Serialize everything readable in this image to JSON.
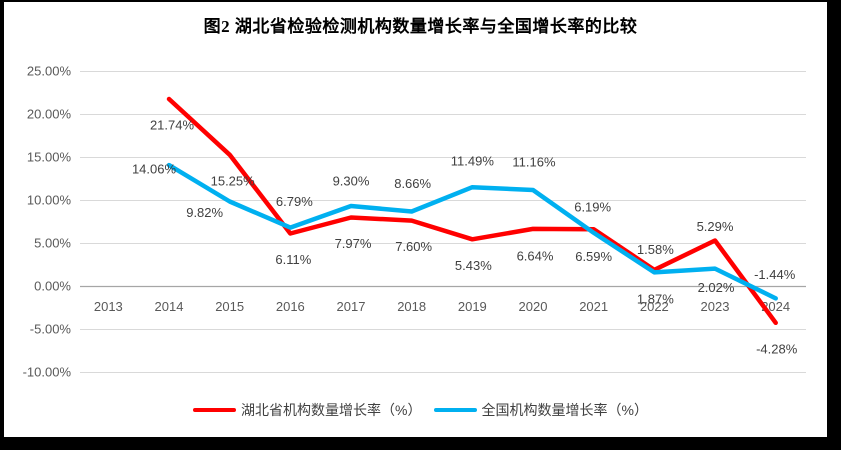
{
  "chart_data": {
    "type": "line",
    "title": "图2  湖北省检验检测机构数量增长率与全国增长率的比较",
    "categories": [
      "2013",
      "2014",
      "2015",
      "2016",
      "2017",
      "2018",
      "2019",
      "2020",
      "2021",
      "2022",
      "2023",
      "2024"
    ],
    "y_axis": {
      "ticks": [
        "25.00%",
        "20.00%",
        "15.00%",
        "10.00%",
        "5.00%",
        "0.00%",
        "-5.00%",
        "-10.00%"
      ],
      "tick_values": [
        25,
        20,
        15,
        10,
        5,
        0,
        -5,
        -10
      ],
      "min": -10,
      "max": 25
    },
    "grid": true,
    "legend_position": "bottom",
    "colors": {
      "grid": "#D9D9D9",
      "axis": "#A6A6A6",
      "tick_text": "#595959",
      "label_text": "#404040",
      "background": "#FFFFFF",
      "frame": "#000000"
    },
    "series": [
      {
        "name": "湖北省机构数量增长率（%）",
        "color": "#FF0000",
        "start_category_index": 1,
        "values": [
          21.74,
          15.25,
          6.11,
          7.97,
          7.6,
          5.43,
          6.64,
          6.59,
          1.87,
          5.29,
          -4.28
        ],
        "labels": [
          "21.74%",
          "15.25%",
          "6.11%",
          "7.97%",
          "7.60%",
          "5.43%",
          "6.64%",
          "6.59%",
          "1.87%",
          "5.29%",
          "-4.28%"
        ],
        "label_offsets": [
          [
            3,
            26
          ],
          [
            3,
            26
          ],
          [
            3,
            26
          ],
          [
            2,
            26
          ],
          [
            2,
            26
          ],
          [
            1,
            26
          ],
          [
            2,
            27
          ],
          [
            0,
            27
          ],
          [
            1,
            29
          ],
          [
            0,
            -14
          ],
          [
            1,
            26
          ]
        ]
      },
      {
        "name": "全国机构数量增长率（%）",
        "color": "#00B0F0",
        "start_category_index": 1,
        "values": [
          14.06,
          9.82,
          6.79,
          9.3,
          8.66,
          11.49,
          11.16,
          6.19,
          1.58,
          2.02,
          -1.44
        ],
        "labels": [
          "14.06%",
          "9.82%",
          "6.79%",
          "9.30%",
          "8.66%",
          "11.49%",
          "11.16%",
          "6.19%",
          "1.58%",
          "2.02%",
          "-1.44%"
        ],
        "label_offsets": [
          [
            -15,
            4
          ],
          [
            -25,
            11
          ],
          [
            4,
            -26
          ],
          [
            0,
            -25
          ],
          [
            1,
            -28
          ],
          [
            0,
            -26
          ],
          [
            1,
            -28
          ],
          [
            -1,
            -26
          ],
          [
            1,
            -23
          ],
          [
            1,
            19
          ],
          [
            -1,
            -24
          ]
        ]
      }
    ]
  }
}
